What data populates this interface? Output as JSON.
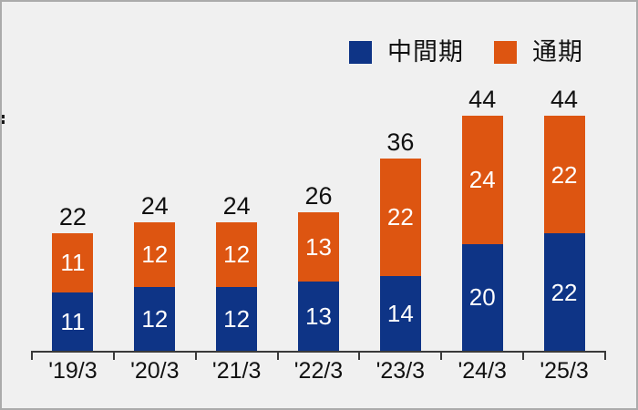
{
  "page": {
    "background_color": "#f0f0f0",
    "border_color": "#ababab",
    "text_color": "#111111",
    "axis_color": "#3a3a3a",
    "fragment_color": "#1a1a1a"
  },
  "legend": {
    "items": [
      {
        "label": "中間期",
        "color": "#0e3486"
      },
      {
        "label": "通期",
        "color": "#dd5511"
      }
    ]
  },
  "chart_data": {
    "type": "bar",
    "stacked": true,
    "categories": [
      "'19/3",
      "'20/3",
      "'21/3",
      "'22/3",
      "'23/3",
      "'24/3",
      "'25/3"
    ],
    "series": [
      {
        "name": "中間期",
        "color": "#0e3486",
        "values": [
          11,
          12,
          12,
          13,
          14,
          20,
          22
        ]
      },
      {
        "name": "通期",
        "color": "#dd5511",
        "values": [
          11,
          12,
          12,
          13,
          22,
          24,
          22
        ]
      }
    ],
    "totals": [
      22,
      24,
      24,
      26,
      36,
      44,
      44
    ],
    "ylim": [
      0,
      44
    ],
    "grid": false,
    "legend_position": "top-right",
    "value_label_style": "white numbers centered inside each stacked segment",
    "total_label_style": "dark numbers above each bar"
  }
}
